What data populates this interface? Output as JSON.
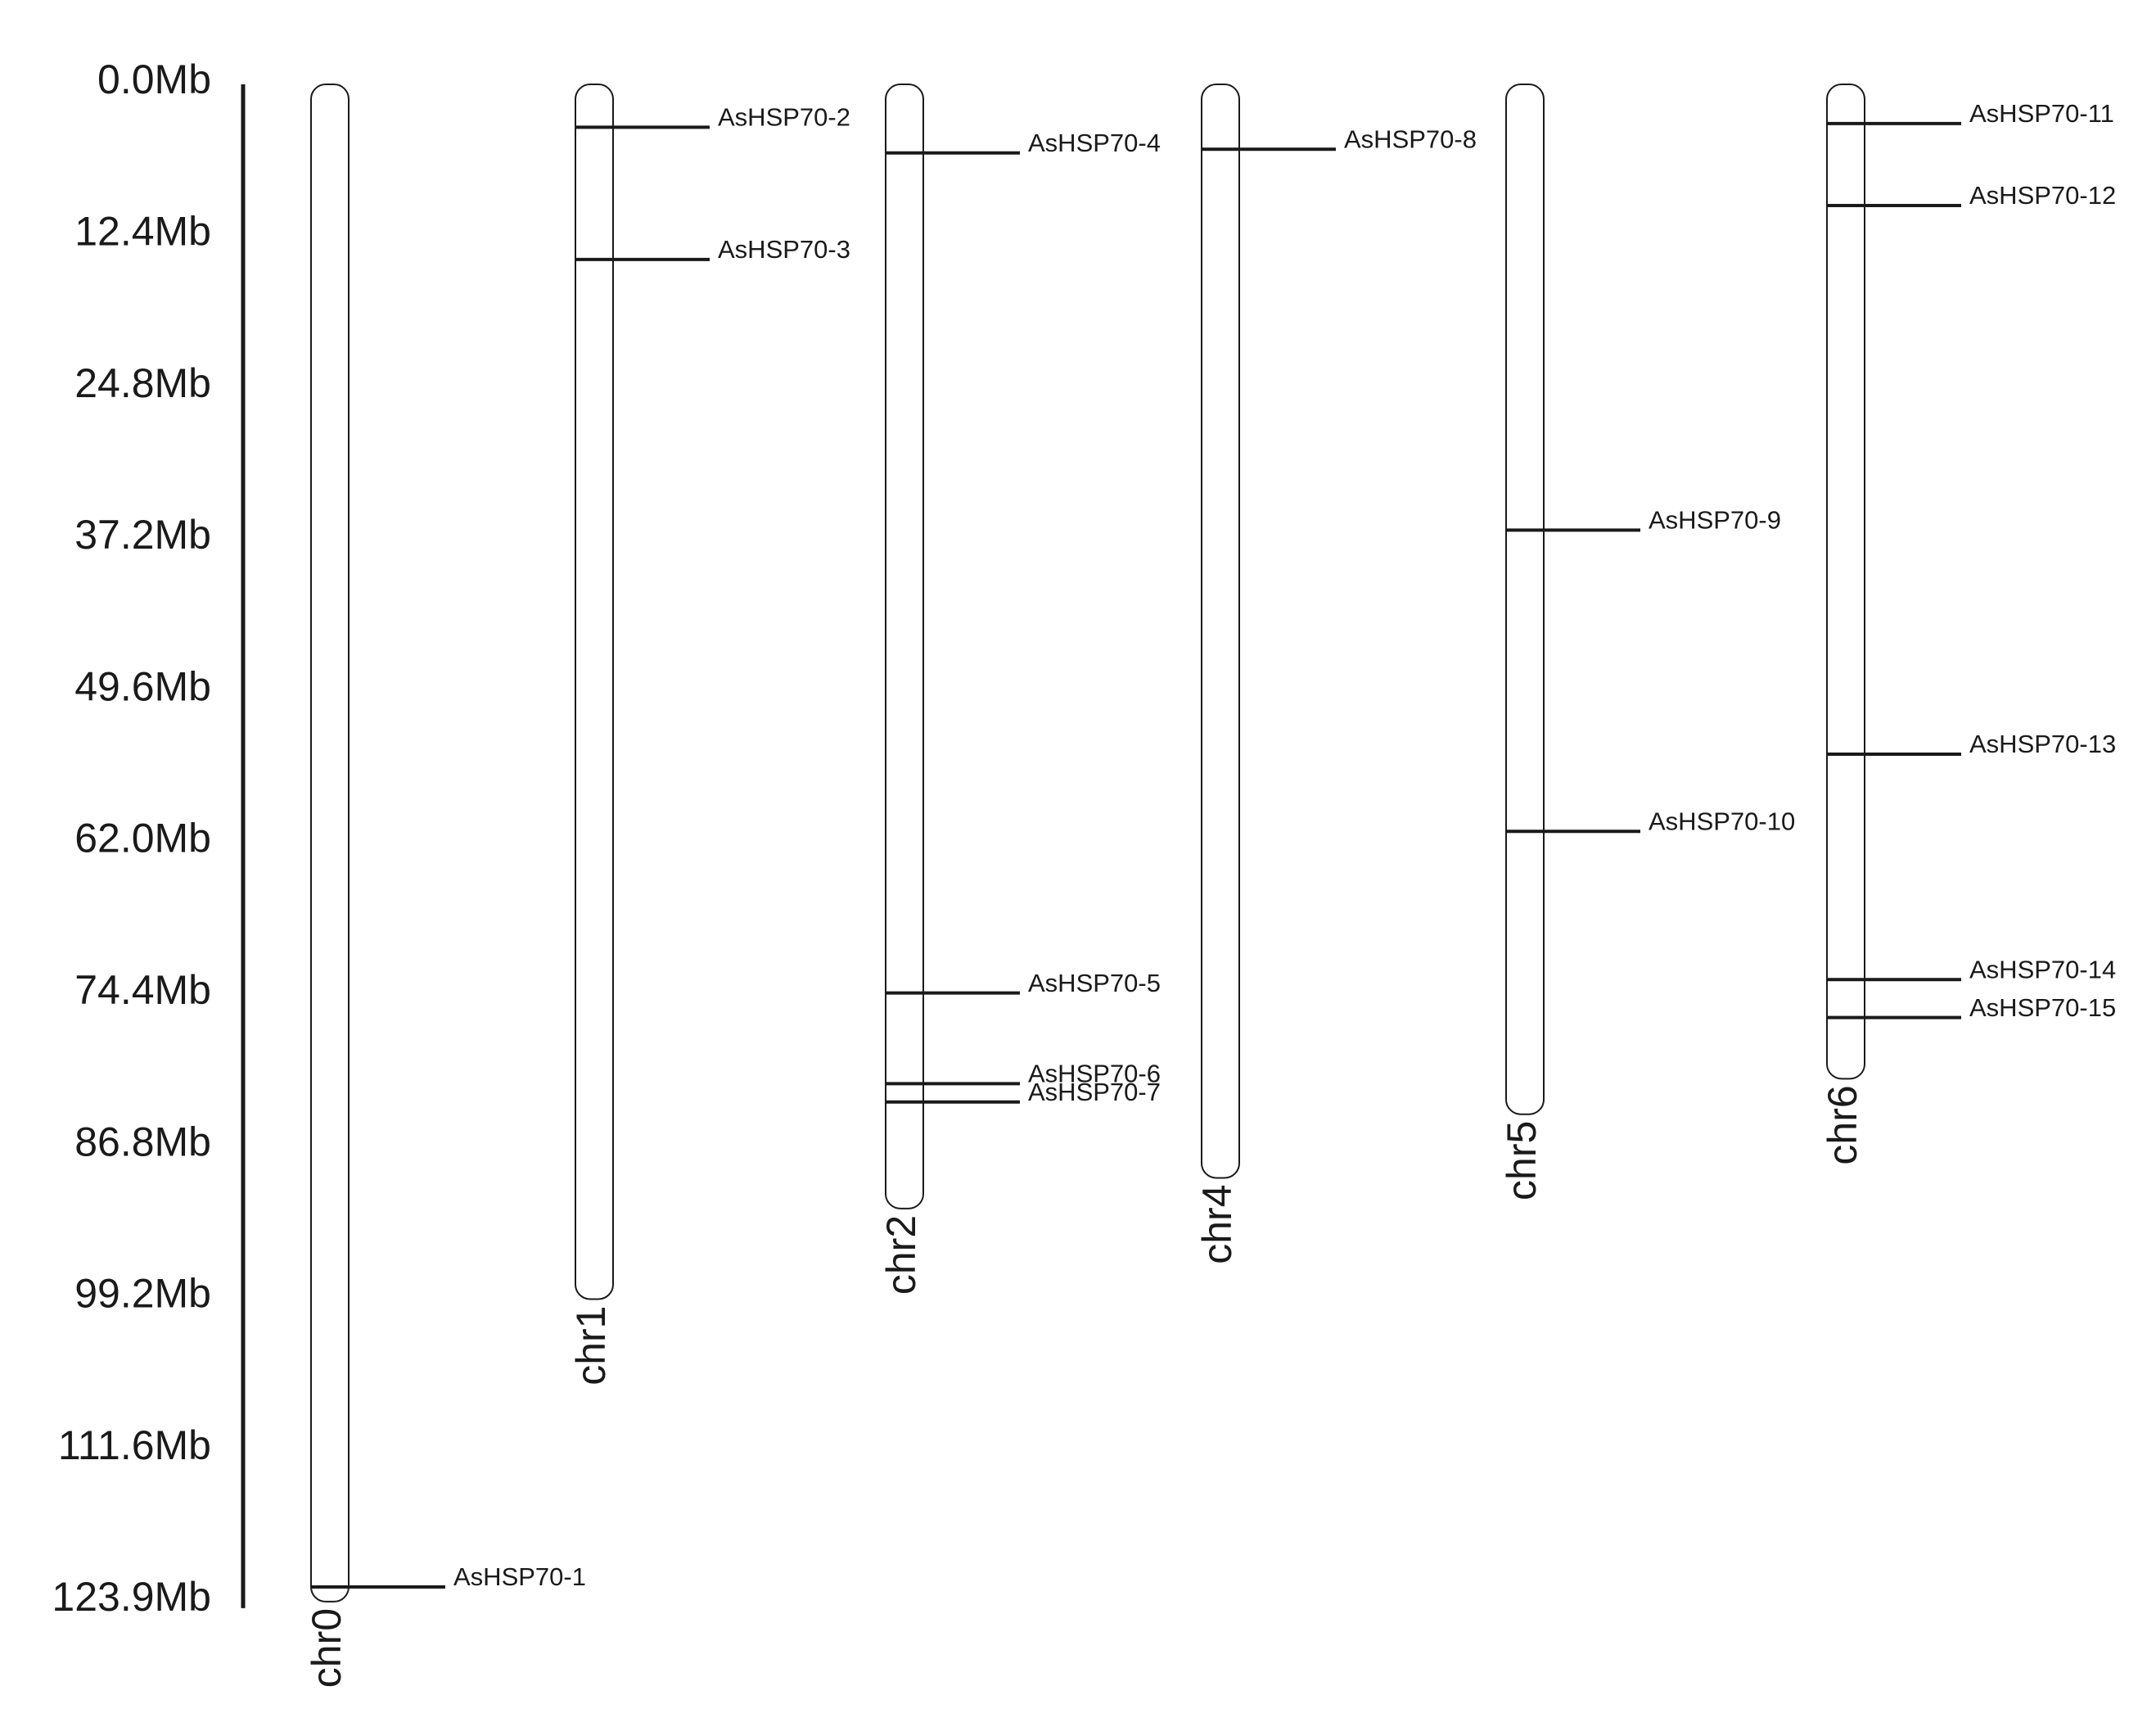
{
  "scale": {
    "unit": "Mb",
    "max": 123.9,
    "ticks": [
      "0.0Mb",
      "12.4Mb",
      "24.8Mb",
      "37.2Mb",
      "49.6Mb",
      "62.0Mb",
      "74.4Mb",
      "86.8Mb",
      "99.2Mb",
      "111.6Mb",
      "123.9Mb"
    ]
  },
  "colors": {
    "line": "#1a1a1a",
    "background": "#ffffff"
  },
  "chromosomes": [
    {
      "name": "chr0",
      "length_mb": 123.9,
      "genes": [
        {
          "name": "AsHSP70-1",
          "position_mb": 122.7
        }
      ]
    },
    {
      "name": "chr1",
      "length_mb": 99.2,
      "genes": [
        {
          "name": "AsHSP70-2",
          "position_mb": 3.5
        },
        {
          "name": "AsHSP70-3",
          "position_mb": 14.3
        }
      ]
    },
    {
      "name": "chr2",
      "length_mb": 91.8,
      "genes": [
        {
          "name": "AsHSP70-4",
          "position_mb": 5.6
        },
        {
          "name": "AsHSP70-5",
          "position_mb": 74.2
        },
        {
          "name": "AsHSP70-6",
          "position_mb": 81.6
        },
        {
          "name": "AsHSP70-7",
          "position_mb": 83.1
        }
      ]
    },
    {
      "name": "chr4",
      "length_mb": 89.3,
      "genes": [
        {
          "name": "AsHSP70-8",
          "position_mb": 5.3
        }
      ]
    },
    {
      "name": "chr5",
      "length_mb": 84.1,
      "genes": [
        {
          "name": "AsHSP70-9",
          "position_mb": 36.4
        },
        {
          "name": "AsHSP70-10",
          "position_mb": 61.0
        }
      ]
    },
    {
      "name": "chr6",
      "length_mb": 81.2,
      "genes": [
        {
          "name": "AsHSP70-11",
          "position_mb": 3.2
        },
        {
          "name": "AsHSP70-12",
          "position_mb": 9.9
        },
        {
          "name": "AsHSP70-13",
          "position_mb": 54.7
        },
        {
          "name": "AsHSP70-14",
          "position_mb": 73.1
        },
        {
          "name": "AsHSP70-15",
          "position_mb": 76.2
        }
      ]
    }
  ]
}
